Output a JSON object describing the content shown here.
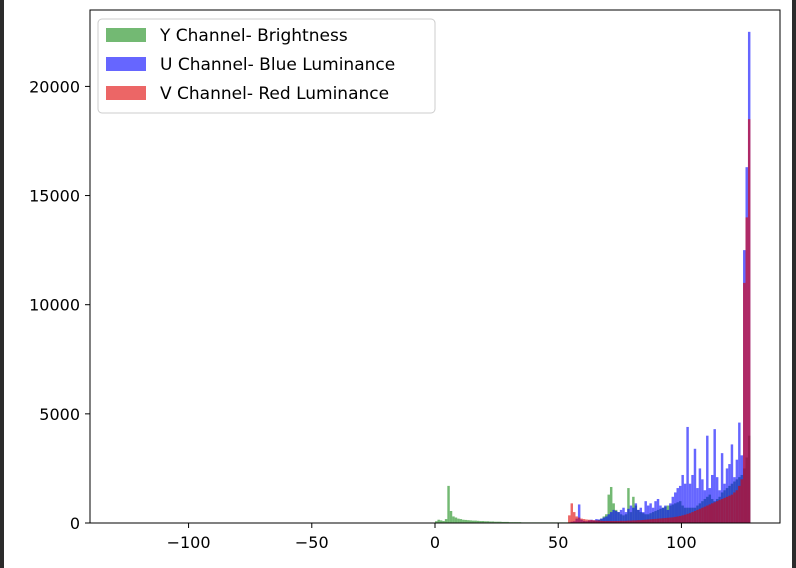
{
  "chart_data": {
    "type": "bar",
    "title": "",
    "xlabel": "",
    "ylabel": "",
    "xlim": [
      -140,
      140
    ],
    "ylim": [
      0,
      23500
    ],
    "xticks": [
      -100,
      -50,
      0,
      50,
      100
    ],
    "xtick_labels": [
      "−100",
      "−50",
      "0",
      "50",
      "100"
    ],
    "yticks": [
      0,
      5000,
      10000,
      15000,
      20000
    ],
    "ytick_labels": [
      "0",
      "5000",
      "10000",
      "15000",
      "20000"
    ],
    "grid": false,
    "legend_position": "top-left",
    "bin_width": 1,
    "series": [
      {
        "name": "Y Channel- Brightness",
        "color": "#008000",
        "opacity": 0.55,
        "bins": [
          [
            0,
            80
          ],
          [
            1,
            150
          ],
          [
            2,
            120
          ],
          [
            3,
            90
          ],
          [
            4,
            180
          ],
          [
            5,
            1700
          ],
          [
            6,
            550
          ],
          [
            7,
            300
          ],
          [
            8,
            250
          ],
          [
            9,
            200
          ],
          [
            10,
            180
          ],
          [
            11,
            150
          ],
          [
            12,
            140
          ],
          [
            13,
            130
          ],
          [
            14,
            120
          ],
          [
            15,
            110
          ],
          [
            16,
            110
          ],
          [
            17,
            100
          ],
          [
            18,
            90
          ],
          [
            19,
            90
          ],
          [
            20,
            80
          ],
          [
            21,
            80
          ],
          [
            22,
            70
          ],
          [
            23,
            70
          ],
          [
            24,
            60
          ],
          [
            25,
            60
          ],
          [
            26,
            60
          ],
          [
            27,
            50
          ],
          [
            28,
            50
          ],
          [
            29,
            50
          ],
          [
            30,
            40
          ],
          [
            31,
            40
          ],
          [
            32,
            40
          ],
          [
            33,
            40
          ],
          [
            34,
            40
          ],
          [
            35,
            30
          ],
          [
            36,
            30
          ],
          [
            37,
            30
          ],
          [
            38,
            30
          ],
          [
            39,
            30
          ],
          [
            40,
            30
          ],
          [
            41,
            30
          ],
          [
            42,
            30
          ],
          [
            43,
            30
          ],
          [
            44,
            30
          ],
          [
            45,
            30
          ],
          [
            46,
            30
          ],
          [
            47,
            30
          ],
          [
            48,
            30
          ],
          [
            49,
            30
          ],
          [
            50,
            30
          ],
          [
            51,
            30
          ],
          [
            52,
            30
          ],
          [
            53,
            30
          ],
          [
            54,
            30
          ],
          [
            55,
            30
          ],
          [
            56,
            30
          ],
          [
            57,
            30
          ],
          [
            58,
            30
          ],
          [
            59,
            40
          ],
          [
            60,
            60
          ],
          [
            61,
            60
          ],
          [
            62,
            80
          ],
          [
            63,
            80
          ],
          [
            64,
            100
          ],
          [
            65,
            120
          ],
          [
            66,
            150
          ],
          [
            67,
            200
          ],
          [
            68,
            300
          ],
          [
            69,
            400
          ],
          [
            70,
            1300
          ],
          [
            71,
            1650
          ],
          [
            72,
            900
          ],
          [
            73,
            600
          ],
          [
            74,
            500
          ],
          [
            75,
            400
          ],
          [
            76,
            350
          ],
          [
            77,
            400
          ],
          [
            78,
            1600
          ],
          [
            79,
            500
          ],
          [
            80,
            1200
          ],
          [
            81,
            800
          ],
          [
            82,
            600
          ],
          [
            83,
            500
          ],
          [
            84,
            450
          ],
          [
            85,
            400
          ],
          [
            86,
            400
          ],
          [
            87,
            450
          ],
          [
            88,
            500
          ],
          [
            89,
            550
          ],
          [
            90,
            600
          ],
          [
            91,
            650
          ],
          [
            92,
            700
          ],
          [
            93,
            750
          ],
          [
            94,
            800
          ],
          [
            95,
            800
          ],
          [
            96,
            850
          ],
          [
            97,
            900
          ],
          [
            98,
            950
          ],
          [
            99,
            1000
          ],
          [
            100,
            800
          ],
          [
            101,
            700
          ],
          [
            102,
            700
          ],
          [
            103,
            700
          ],
          [
            104,
            700
          ],
          [
            105,
            700
          ],
          [
            106,
            800
          ],
          [
            107,
            900
          ],
          [
            108,
            1000
          ],
          [
            109,
            1100
          ],
          [
            110,
            1200
          ],
          [
            111,
            1300
          ],
          [
            112,
            1100
          ],
          [
            113,
            1000
          ],
          [
            114,
            1100
          ],
          [
            115,
            1200
          ],
          [
            116,
            1400
          ],
          [
            117,
            1500
          ],
          [
            118,
            1600
          ],
          [
            119,
            1700
          ],
          [
            120,
            1800
          ],
          [
            121,
            1900
          ],
          [
            122,
            2000
          ],
          [
            123,
            2100
          ],
          [
            124,
            2200
          ],
          [
            125,
            2500
          ],
          [
            126,
            3000
          ],
          [
            127,
            4000
          ]
        ]
      },
      {
        "name": "U Channel- Blue Luminance",
        "color": "#0000ff",
        "opacity": 0.6,
        "bins": [
          [
            55,
            60
          ],
          [
            56,
            80
          ],
          [
            57,
            200
          ],
          [
            58,
            850
          ],
          [
            59,
            150
          ],
          [
            60,
            100
          ],
          [
            61,
            80
          ],
          [
            62,
            120
          ],
          [
            63,
            150
          ],
          [
            64,
            120
          ],
          [
            65,
            180
          ],
          [
            66,
            160
          ],
          [
            67,
            200
          ],
          [
            68,
            250
          ],
          [
            69,
            300
          ],
          [
            70,
            400
          ],
          [
            71,
            500
          ],
          [
            72,
            600
          ],
          [
            73,
            550
          ],
          [
            74,
            500
          ],
          [
            75,
            600
          ],
          [
            76,
            700
          ],
          [
            77,
            500
          ],
          [
            78,
            650
          ],
          [
            79,
            800
          ],
          [
            80,
            700
          ],
          [
            81,
            900
          ],
          [
            82,
            600
          ],
          [
            83,
            700
          ],
          [
            84,
            500
          ],
          [
            85,
            1000
          ],
          [
            86,
            800
          ],
          [
            87,
            900
          ],
          [
            88,
            700
          ],
          [
            89,
            1000
          ],
          [
            90,
            1100
          ],
          [
            91,
            800
          ],
          [
            92,
            700
          ],
          [
            93,
            800
          ],
          [
            94,
            600
          ],
          [
            95,
            900
          ],
          [
            96,
            1200
          ],
          [
            97,
            1400
          ],
          [
            98,
            1600
          ],
          [
            99,
            1700
          ],
          [
            100,
            2200
          ],
          [
            101,
            1800
          ],
          [
            102,
            4400
          ],
          [
            103,
            1800
          ],
          [
            104,
            2200
          ],
          [
            105,
            3400
          ],
          [
            106,
            1600
          ],
          [
            107,
            2500
          ],
          [
            108,
            2000
          ],
          [
            109,
            1500
          ],
          [
            110,
            4000
          ],
          [
            111,
            1600
          ],
          [
            112,
            2200
          ],
          [
            113,
            4300
          ],
          [
            114,
            2100
          ],
          [
            115,
            1500
          ],
          [
            116,
            3200
          ],
          [
            117,
            1800
          ],
          [
            118,
            2500
          ],
          [
            119,
            2700
          ],
          [
            120,
            3600
          ],
          [
            121,
            2100
          ],
          [
            122,
            2900
          ],
          [
            123,
            4600
          ],
          [
            124,
            3100
          ],
          [
            125,
            12500
          ],
          [
            126,
            16300
          ],
          [
            127,
            22500
          ]
        ]
      },
      {
        "name": "V Channel- Red Luminance",
        "color": "#e00000",
        "opacity": 0.6,
        "bins": [
          [
            54,
            350
          ],
          [
            55,
            900
          ],
          [
            56,
            500
          ],
          [
            57,
            300
          ],
          [
            58,
            250
          ],
          [
            59,
            200
          ],
          [
            60,
            180
          ],
          [
            61,
            160
          ],
          [
            62,
            150
          ],
          [
            63,
            140
          ],
          [
            64,
            130
          ],
          [
            65,
            120
          ],
          [
            66,
            110
          ],
          [
            67,
            100
          ],
          [
            68,
            90
          ],
          [
            69,
            90
          ],
          [
            70,
            90
          ],
          [
            71,
            90
          ],
          [
            72,
            90
          ],
          [
            73,
            90
          ],
          [
            74,
            90
          ],
          [
            75,
            100
          ],
          [
            76,
            100
          ],
          [
            77,
            100
          ],
          [
            78,
            110
          ],
          [
            79,
            110
          ],
          [
            80,
            120
          ],
          [
            81,
            120
          ],
          [
            82,
            130
          ],
          [
            83,
            130
          ],
          [
            84,
            140
          ],
          [
            85,
            150
          ],
          [
            86,
            160
          ],
          [
            87,
            170
          ],
          [
            88,
            180
          ],
          [
            89,
            190
          ],
          [
            90,
            200
          ],
          [
            91,
            210
          ],
          [
            92,
            220
          ],
          [
            93,
            230
          ],
          [
            94,
            240
          ],
          [
            95,
            250
          ],
          [
            96,
            260
          ],
          [
            97,
            280
          ],
          [
            98,
            300
          ],
          [
            99,
            320
          ],
          [
            100,
            350
          ],
          [
            101,
            380
          ],
          [
            102,
            420
          ],
          [
            103,
            450
          ],
          [
            104,
            500
          ],
          [
            105,
            550
          ],
          [
            106,
            600
          ],
          [
            107,
            650
          ],
          [
            108,
            700
          ],
          [
            109,
            750
          ],
          [
            110,
            800
          ],
          [
            111,
            850
          ],
          [
            112,
            900
          ],
          [
            113,
            950
          ],
          [
            114,
            1000
          ],
          [
            115,
            1050
          ],
          [
            116,
            1100
          ],
          [
            117,
            1150
          ],
          [
            118,
            1200
          ],
          [
            119,
            1250
          ],
          [
            120,
            1300
          ],
          [
            121,
            1400
          ],
          [
            122,
            1500
          ],
          [
            123,
            1700
          ],
          [
            124,
            2000
          ],
          [
            125,
            11000
          ],
          [
            126,
            14000
          ],
          [
            127,
            18500
          ]
        ]
      }
    ]
  }
}
